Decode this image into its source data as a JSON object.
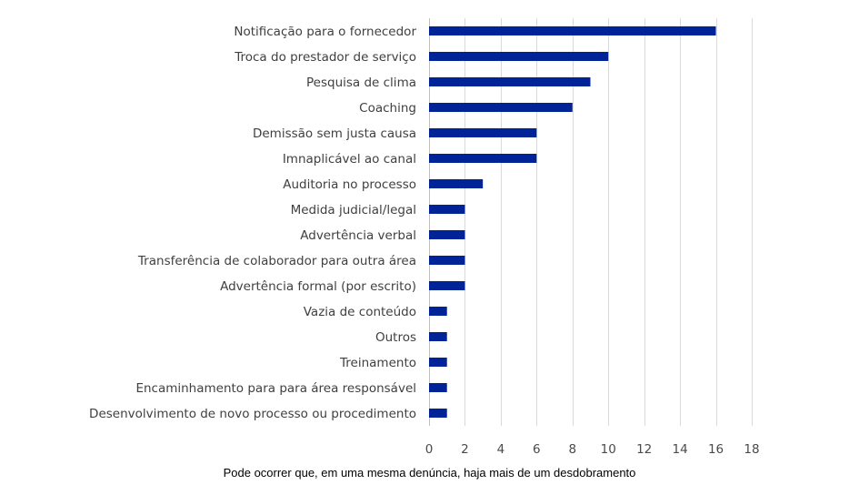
{
  "chart_data": {
    "type": "bar",
    "orientation": "horizontal",
    "categories": [
      "Notificação para o fornecedor",
      "Troca do prestador de serviço",
      "Pesquisa de clima",
      "Coaching",
      "Demissão sem justa causa",
      "Imnaplicável ao canal",
      "Auditoria no processo",
      "Medida judicial/legal",
      "Advertência verbal",
      "Transferência de colaborador para outra área",
      "Advertência formal (por escrito)",
      "Vazia de conteúdo",
      "Outros",
      "Treinamento",
      "Encaminhamento para para área responsável",
      "Desenvolvimento de novo processo ou procedimento"
    ],
    "values": [
      16,
      10,
      9,
      8,
      6,
      6,
      3,
      2,
      2,
      2,
      2,
      1,
      1,
      1,
      1,
      1
    ],
    "xlim": [
      0,
      18
    ],
    "xticks": [
      0,
      2,
      4,
      6,
      8,
      10,
      12,
      14,
      16,
      18
    ],
    "grid": true,
    "bar_color": "#002397",
    "title": "",
    "xlabel": "",
    "ylabel": ""
  },
  "footnote": "Pode ocorrer que, em uma mesma denúncia, haja mais de um desdobramento"
}
